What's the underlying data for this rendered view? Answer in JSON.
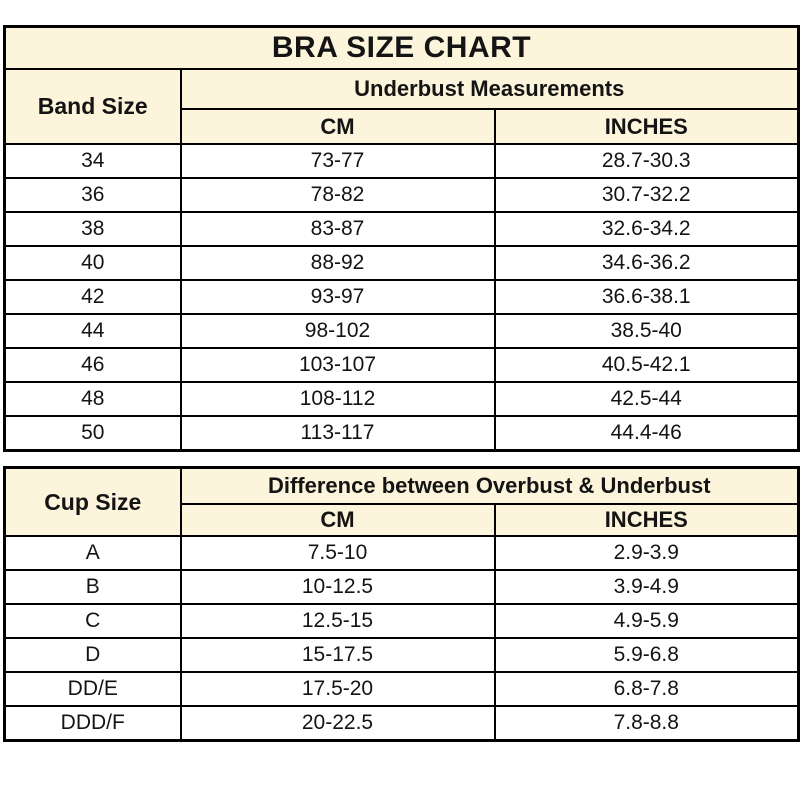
{
  "title": "BRA SIZE CHART",
  "colors": {
    "header_background": "#fcf5db",
    "row_background": "#ffffff",
    "border": "#000000",
    "text": "#141414"
  },
  "chart_data": [
    {
      "type": "table",
      "title": "BRA SIZE CHART",
      "row_header": "Band Size",
      "group_header": "Underbust Measurements",
      "col_headers": [
        "CM",
        "INCHES"
      ],
      "rows": [
        [
          "34",
          "73-77",
          "28.7-30.3"
        ],
        [
          "36",
          "78-82",
          "30.7-32.2"
        ],
        [
          "38",
          "83-87",
          "32.6-34.2"
        ],
        [
          "40",
          "88-92",
          "34.6-36.2"
        ],
        [
          "42",
          "93-97",
          "36.6-38.1"
        ],
        [
          "44",
          "98-102",
          "38.5-40"
        ],
        [
          "46",
          "103-107",
          "40.5-42.1"
        ],
        [
          "48",
          "108-112",
          "42.5-44"
        ],
        [
          "50",
          "113-117",
          "44.4-46"
        ]
      ]
    },
    {
      "type": "table",
      "row_header": "Cup Size",
      "group_header": "Difference between Overbust & Underbust",
      "col_headers": [
        "CM",
        "INCHES"
      ],
      "rows": [
        [
          "A",
          "7.5-10",
          "2.9-3.9"
        ],
        [
          "B",
          "10-12.5",
          "3.9-4.9"
        ],
        [
          "C",
          "12.5-15",
          "4.9-5.9"
        ],
        [
          "D",
          "15-17.5",
          "5.9-6.8"
        ],
        [
          "DD/E",
          "17.5-20",
          "6.8-7.8"
        ],
        [
          "DDD/F",
          "20-22.5",
          "7.8-8.8"
        ]
      ]
    }
  ]
}
